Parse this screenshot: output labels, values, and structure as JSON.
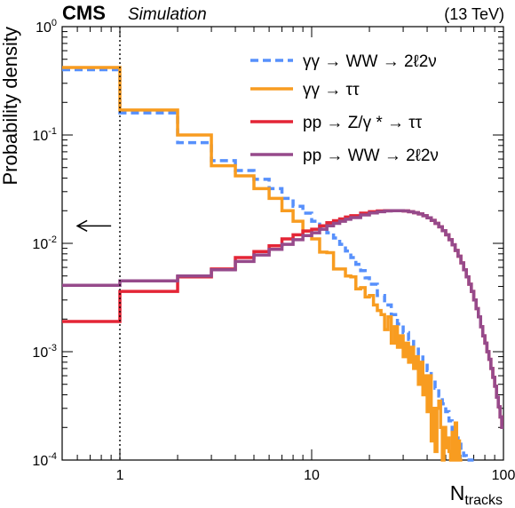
{
  "header": {
    "experiment": "CMS",
    "tag": "Simulation",
    "energy": "(13 TeV)"
  },
  "chart_data": {
    "type": "line",
    "xlabel": "N",
    "xlabel_sub": "tracks",
    "ylabel": "Probability density",
    "x_scale": "log",
    "y_scale": "log",
    "xlim": [
      0.5,
      100
    ],
    "ylim": [
      0.0001,
      1
    ],
    "x_ticks": [
      {
        "value": 1,
        "label": "1"
      },
      {
        "value": 10,
        "label": "10"
      },
      {
        "value": 100,
        "label": "100"
      }
    ],
    "y_ticks": [
      {
        "value": 1,
        "base": "10",
        "exp": "0"
      },
      {
        "value": 0.1,
        "base": "10",
        "exp": "-1"
      },
      {
        "value": 0.01,
        "base": "10",
        "exp": "-2"
      },
      {
        "value": 0.001,
        "base": "10",
        "exp": "-3"
      },
      {
        "value": 0.0001,
        "base": "10",
        "exp": "-4"
      }
    ],
    "annotations": {
      "vertical_line_x": 1,
      "arrow": {
        "from_x": 0.9,
        "to_x": 0.6,
        "y": 0.0145,
        "direction": "left"
      }
    },
    "legend_position": "top-right",
    "series": [
      {
        "name": "γγ → WW → 2ℓ2ν",
        "color": "#5790fc",
        "dash": true,
        "x": [
          0.5,
          1,
          2,
          3,
          4,
          5,
          6,
          7,
          8,
          9,
          10,
          11,
          12,
          13,
          14,
          15,
          16,
          17,
          18,
          19,
          20,
          22,
          24,
          26,
          28,
          30,
          32,
          34,
          36,
          38,
          40,
          42,
          44,
          46,
          48,
          50,
          52,
          54,
          56,
          58,
          60,
          62,
          64,
          66,
          68
        ],
        "y": [
          0.4,
          0.16,
          0.085,
          0.058,
          0.047,
          0.039,
          0.032,
          0.026,
          0.022,
          0.019,
          0.016,
          0.014,
          0.0125,
          0.0112,
          0.0098,
          0.0085,
          0.0074,
          0.0064,
          0.0056,
          0.0048,
          0.0042,
          0.0033,
          0.0027,
          0.0022,
          0.0018,
          0.0015,
          0.0013,
          0.0011,
          0.00095,
          0.0008,
          0.00067,
          0.00056,
          0.00046,
          0.00039,
          0.00033,
          0.00028,
          0.00023,
          0.00019,
          0.00016,
          0.00014,
          0.00012,
          0.00011,
          0.0001,
          0.0001,
          0.0001
        ]
      },
      {
        "name": "γγ → ττ",
        "color": "#f89c20",
        "dash": false,
        "x": [
          0.5,
          1,
          2,
          3,
          4,
          5,
          6,
          7,
          8,
          9,
          10,
          11,
          12,
          13,
          14,
          15,
          16,
          17,
          18,
          19,
          20,
          21,
          22,
          23,
          24,
          25,
          26,
          27,
          28,
          29,
          30,
          31,
          32,
          33,
          34,
          35,
          36,
          37,
          38,
          39,
          40,
          41,
          42,
          43,
          44,
          45,
          46,
          47,
          48,
          49,
          50,
          51,
          52,
          53,
          54,
          55,
          56,
          57,
          58,
          59,
          60
        ],
        "y": [
          0.42,
          0.17,
          0.1,
          0.052,
          0.042,
          0.032,
          0.026,
          0.02,
          0.016,
          0.013,
          0.011,
          0.0083,
          0.0082,
          0.0058,
          0.0058,
          0.005,
          0.0049,
          0.0038,
          0.0039,
          0.0032,
          0.0033,
          0.0027,
          0.0024,
          0.0022,
          0.0016,
          0.0021,
          0.0012,
          0.0017,
          0.0011,
          0.0014,
          0.0009,
          0.0012,
          0.0008,
          0.0011,
          0.0007,
          0.0009,
          0.0005,
          0.0008,
          0.0004,
          0.0006,
          0.00028,
          0.0006,
          0.00015,
          0.0003,
          0.00012,
          0.0003,
          0.00035,
          0.0002,
          0.0001,
          0.0002,
          0.00013,
          0.00016,
          0.00012,
          0.0001,
          0.00018,
          0.0001,
          0.00022,
          0.0001,
          0.00015,
          0.0001,
          0.0001
        ]
      },
      {
        "name": "pp → Z/γ * → ττ",
        "color": "#e42536",
        "dash": false,
        "x": [
          0.5,
          1,
          2,
          3,
          4,
          5,
          6,
          7,
          8,
          9,
          10,
          11,
          12,
          13,
          14,
          15,
          16,
          18,
          20,
          22,
          24,
          26,
          28,
          30,
          32,
          34,
          36,
          38,
          40,
          42,
          44,
          46,
          48,
          50,
          52,
          54,
          56,
          58,
          60,
          62,
          64,
          66,
          68,
          70,
          72,
          74,
          76,
          78,
          80,
          82,
          84,
          86,
          88,
          90,
          92,
          94,
          96,
          98
        ],
        "y": [
          0.0019,
          0.0036,
          0.0049,
          0.0058,
          0.0074,
          0.0084,
          0.0095,
          0.011,
          0.012,
          0.013,
          0.0135,
          0.0145,
          0.0155,
          0.0162,
          0.0168,
          0.0175,
          0.018,
          0.019,
          0.0196,
          0.0199,
          0.02,
          0.02,
          0.02,
          0.0199,
          0.0196,
          0.0192,
          0.0187,
          0.018,
          0.0172,
          0.0163,
          0.0153,
          0.0142,
          0.0131,
          0.012,
          0.0108,
          0.0097,
          0.0086,
          0.0076,
          0.0066,
          0.0057,
          0.0049,
          0.0042,
          0.0036,
          0.003,
          0.0025,
          0.0021,
          0.0017,
          0.0014,
          0.0012,
          0.001,
          0.00085,
          0.0007,
          0.00058,
          0.00048,
          0.00038,
          0.00031,
          0.00025,
          0.0002
        ]
      },
      {
        "name": "pp → WW → 2ℓ2ν",
        "color": "#964a8b",
        "dash": false,
        "x": [
          0.5,
          1,
          2,
          3,
          4,
          5,
          6,
          7,
          8,
          9,
          10,
          11,
          12,
          13,
          14,
          15,
          16,
          18,
          20,
          22,
          24,
          26,
          28,
          30,
          32,
          34,
          36,
          38,
          40,
          42,
          44,
          46,
          48,
          50,
          52,
          54,
          56,
          58,
          60,
          62,
          64,
          66,
          68,
          70,
          72,
          74,
          76,
          78,
          80,
          82,
          84,
          86,
          88,
          90,
          92,
          94,
          96,
          98
        ],
        "y": [
          0.0041,
          0.0045,
          0.005,
          0.0057,
          0.0068,
          0.0078,
          0.0088,
          0.0098,
          0.0108,
          0.0118,
          0.0125,
          0.0135,
          0.0145,
          0.0153,
          0.016,
          0.0167,
          0.0173,
          0.0183,
          0.0191,
          0.0196,
          0.0199,
          0.02,
          0.02,
          0.0199,
          0.0196,
          0.0192,
          0.0187,
          0.018,
          0.0172,
          0.0163,
          0.0153,
          0.0142,
          0.0131,
          0.012,
          0.0108,
          0.0097,
          0.0086,
          0.0076,
          0.0066,
          0.0057,
          0.0049,
          0.0042,
          0.0036,
          0.003,
          0.0025,
          0.0021,
          0.0017,
          0.0014,
          0.0012,
          0.001,
          0.00085,
          0.0007,
          0.00058,
          0.00048,
          0.00038,
          0.00031,
          0.00025,
          0.0002
        ]
      }
    ]
  }
}
